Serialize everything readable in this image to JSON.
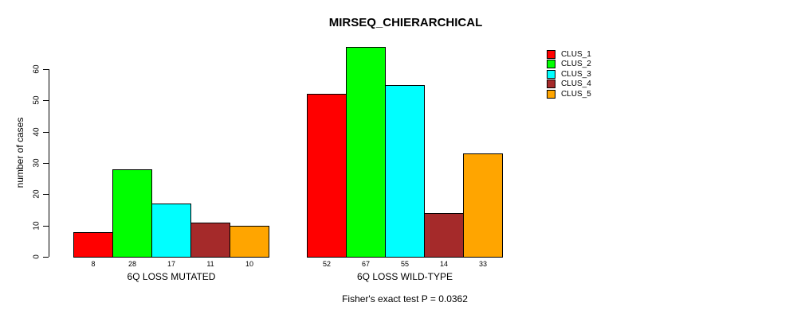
{
  "title": "MIRSEQ_CHIERARCHICAL",
  "footnote": "Fisher's exact test P = 0.0362",
  "y_axis": {
    "label": "number of cases",
    "ticks": [
      0,
      10,
      20,
      30,
      40,
      50,
      60
    ]
  },
  "legend": {
    "items": [
      {
        "label": "CLUS_1",
        "color": "#FF0000"
      },
      {
        "label": "CLUS_2",
        "color": "#00FF00"
      },
      {
        "label": "CLUS_3",
        "color": "#00FFFF"
      },
      {
        "label": "CLUS_4",
        "color": "#A52A2A"
      },
      {
        "label": "CLUS_5",
        "color": "#FFA500"
      }
    ]
  },
  "chart_data": {
    "type": "bar",
    "title": "MIRSEQ_CHIERARCHICAL",
    "xlabel": "",
    "ylabel": "number of cases",
    "ylim": [
      0,
      60
    ],
    "yticks": [
      0,
      10,
      20,
      30,
      40,
      50,
      60
    ],
    "grid": false,
    "legend_position": "right",
    "annotation": "Fisher's exact test P = 0.0362",
    "series": [
      {
        "name": "CLUS_1",
        "color": "#FF0000",
        "values": [
          8,
          52
        ]
      },
      {
        "name": "CLUS_2",
        "color": "#00FF00",
        "values": [
          28,
          67
        ]
      },
      {
        "name": "CLUS_3",
        "color": "#00FFFF",
        "values": [
          17,
          55
        ]
      },
      {
        "name": "CLUS_4",
        "color": "#A52A2A",
        "values": [
          11,
          14
        ]
      },
      {
        "name": "CLUS_5",
        "color": "#FFA500",
        "values": [
          10,
          33
        ]
      }
    ],
    "groups": [
      {
        "label": "6Q LOSS MUTATED",
        "values": [
          8,
          28,
          17,
          11,
          10
        ]
      },
      {
        "label": "6Q LOSS WILD-TYPE",
        "values": [
          52,
          67,
          55,
          14,
          33
        ]
      }
    ],
    "bar_value_labels_shown": true
  }
}
